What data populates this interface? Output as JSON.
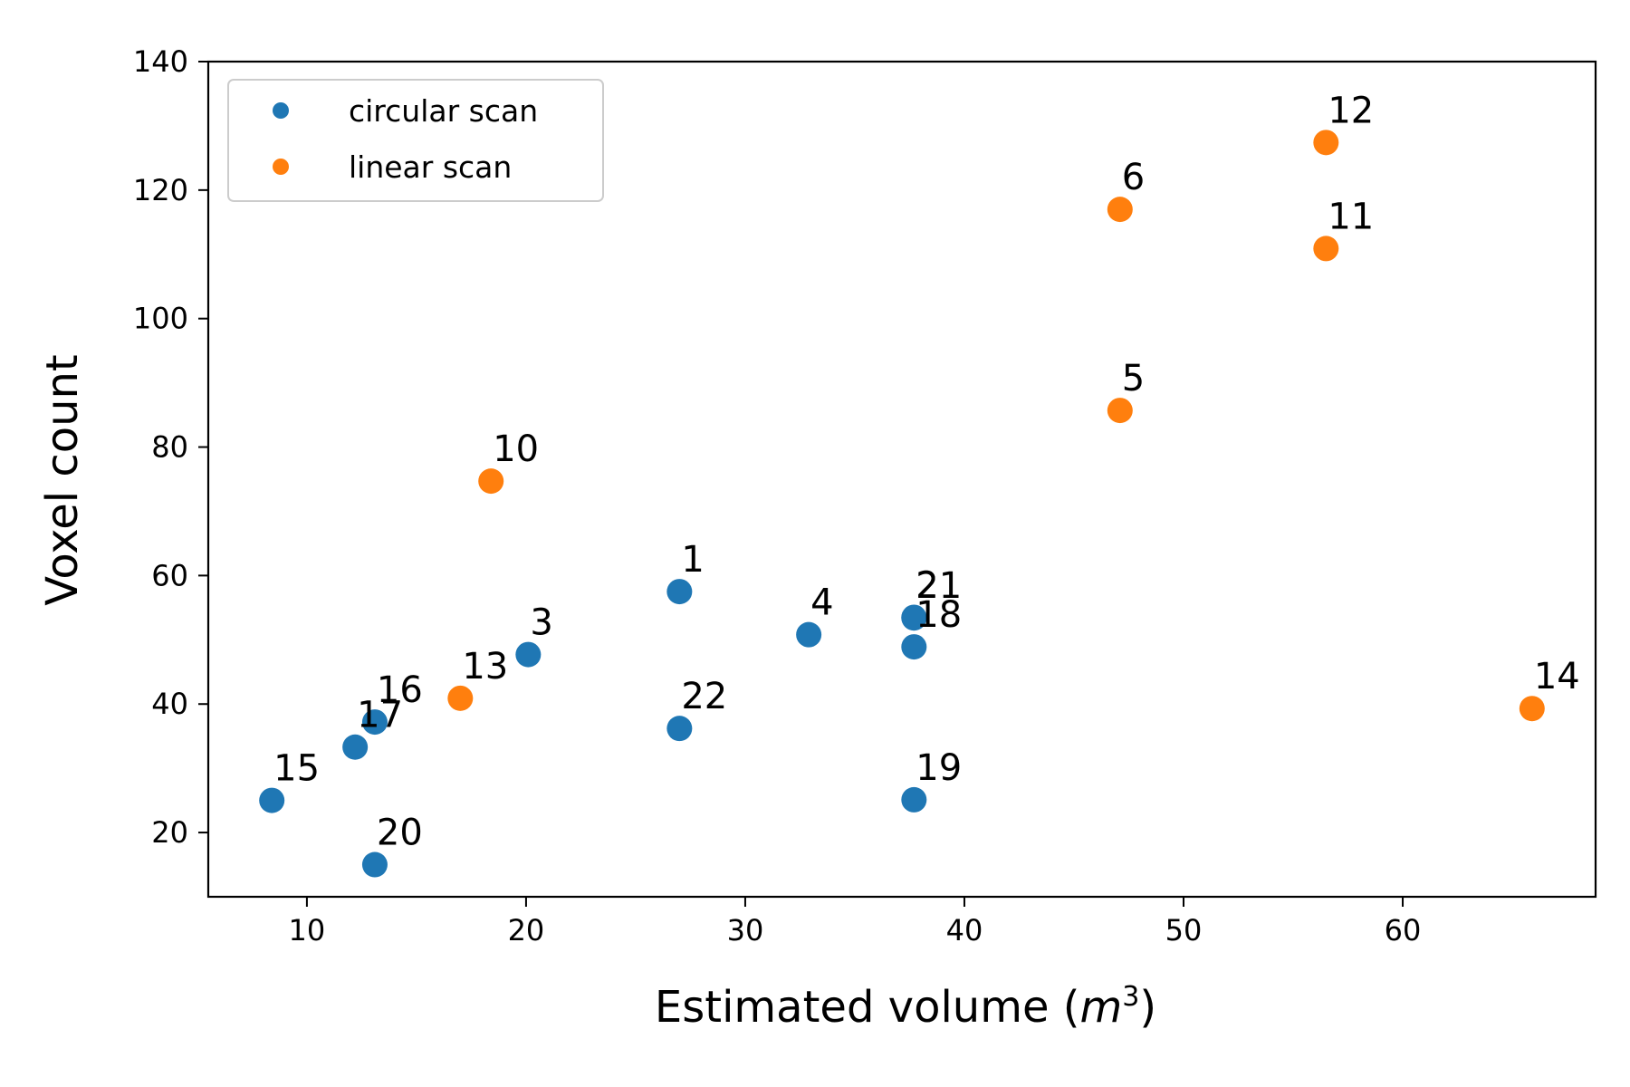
{
  "chart_data": {
    "type": "scatter",
    "xlabel": "Estimated volume (",
    "xlabel_math": "m",
    "xlabel_sup": "3",
    "xlabel_suffix": ")",
    "ylabel": "Voxel count",
    "xlim": [
      5.5,
      68.8
    ],
    "ylim": [
      10,
      140
    ],
    "xticks": [
      10,
      20,
      30,
      40,
      50,
      60
    ],
    "yticks": [
      20,
      40,
      60,
      80,
      100,
      120,
      140
    ],
    "grid": false,
    "legend_position": "top-left",
    "series": [
      {
        "name": "circular scan",
        "color": "#1f77b4",
        "points": [
          {
            "label": "1",
            "x": 27.0,
            "y": 57.5
          },
          {
            "label": "2",
            "x": 37.7,
            "y": 53.5
          },
          {
            "label": "3",
            "x": 20.1,
            "y": 47.7
          },
          {
            "label": "4",
            "x": 32.9,
            "y": 50.8
          },
          {
            "label": "15",
            "x": 8.4,
            "y": 25.0
          },
          {
            "label": "16",
            "x": 13.1,
            "y": 37.2
          },
          {
            "label": "17",
            "x": 12.2,
            "y": 33.3
          },
          {
            "label": "18",
            "x": 37.7,
            "y": 48.9
          },
          {
            "label": "19",
            "x": 37.7,
            "y": 25.1
          },
          {
            "label": "20",
            "x": 13.1,
            "y": 15.0
          },
          {
            "label": "21",
            "x": 37.7,
            "y": 53.4
          },
          {
            "label": "22",
            "x": 27.0,
            "y": 36.2
          }
        ]
      },
      {
        "name": "linear scan",
        "color": "#ff7f0e",
        "points": [
          {
            "label": "5",
            "x": 47.1,
            "y": 85.7
          },
          {
            "label": "6",
            "x": 47.1,
            "y": 117.0
          },
          {
            "label": "10",
            "x": 18.4,
            "y": 74.7
          },
          {
            "label": "11",
            "x": 56.5,
            "y": 110.9
          },
          {
            "label": "12",
            "x": 56.5,
            "y": 127.4
          },
          {
            "label": "13",
            "x": 17.0,
            "y": 40.9
          },
          {
            "label": "14",
            "x": 65.9,
            "y": 39.3
          }
        ]
      }
    ]
  }
}
